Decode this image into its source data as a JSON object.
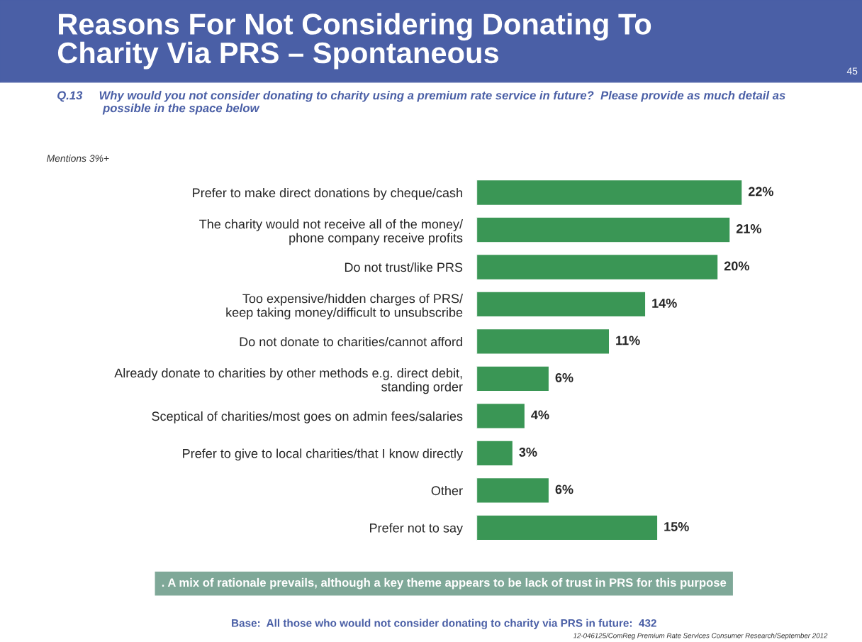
{
  "chart_data": {
    "type": "bar",
    "orientation": "horizontal",
    "title": "Reasons For Not Considering Donating To\nCharity Via PRS – Spontaneous",
    "subtitle": "Q.13     Why would you not consider donating to charity using a premium rate service in future?  Please provide as much detail as\n              possible in the space below",
    "categories": [
      "Prefer to make direct donations by cheque/cash",
      "The charity would not receive all of the money/\nphone company receive profits",
      "Do not trust/like PRS",
      "Too expensive/hidden charges of PRS/\nkeep taking money/difficult to unsubscribe",
      "Do not donate to charities/cannot afford",
      "Already donate to charities by other methods e.g. direct debit,\nstanding order",
      "Sceptical of charities/most goes on admin fees/salaries",
      "Prefer to give to local charities/that I know directly",
      "Other",
      "Prefer not to say"
    ],
    "values": [
      22,
      21,
      20,
      14,
      11,
      6,
      4,
      3,
      6,
      15
    ],
    "color": "#3a9655",
    "value_labels": [
      "22%",
      "21%",
      "20%",
      "14%",
      "11%",
      "6%",
      "4%",
      "3%",
      "6%",
      "15%"
    ],
    "tick_labels": "y",
    "grid": false,
    "legend": false,
    "annotations": [
      "Mentions 3%+",
      ". A mix of rationale prevails, although a key theme appears to be lack of trust in PRS for this purpose",
      "Base:  All those who would not consider donating to charity via PRS in future:  432",
      "12-046125/ComReg Premium Rate Services Consumer Research/September 2012",
      "45"
    ]
  }
}
